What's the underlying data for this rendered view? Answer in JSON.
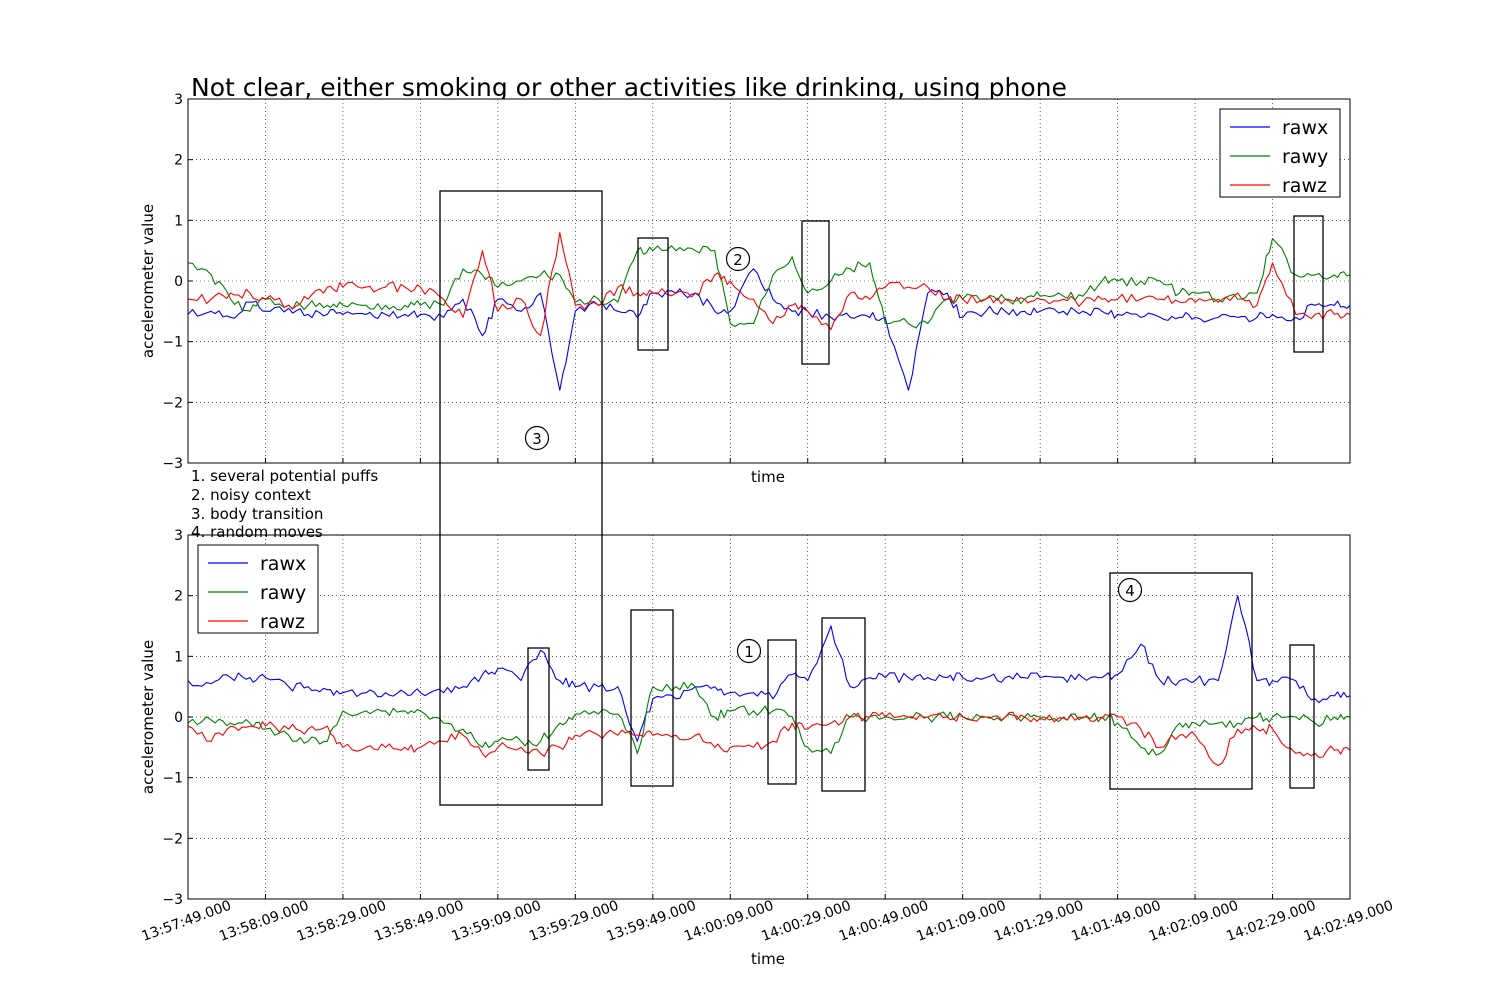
{
  "chart_data": [
    {
      "type": "line",
      "title": "Not clear, either smoking or other activities like drinking, using phone",
      "xlabel": "time",
      "ylabel": "accelerometer value",
      "ylim": [
        -3,
        3
      ],
      "yticks": [
        "3",
        "2",
        "1",
        "0",
        "−1",
        "−2",
        "−3"
      ],
      "grid": true,
      "legend": {
        "position": "top-right"
      },
      "series": [
        {
          "name": "rawx",
          "color": "#0000ff",
          "x": [
            "13:57:49",
            "13:57:55",
            "13:58:00",
            "13:58:05",
            "13:58:09",
            "13:58:15",
            "13:58:20",
            "13:58:25",
            "13:58:29",
            "13:58:35",
            "13:58:40",
            "13:58:45",
            "13:58:49",
            "13:58:55",
            "13:59:00",
            "13:59:05",
            "13:59:09",
            "13:59:15",
            "13:59:20",
            "13:59:25",
            "13:59:29",
            "13:59:35",
            "13:59:40",
            "13:59:45",
            "13:59:49",
            "13:59:55",
            "14:00:00",
            "14:00:05",
            "14:00:09",
            "14:00:15",
            "14:00:20",
            "14:00:25",
            "14:00:29",
            "14:00:35",
            "14:00:40",
            "14:00:45",
            "14:00:49",
            "14:00:55",
            "14:01:00",
            "14:01:05",
            "14:01:09",
            "14:01:15",
            "14:01:20",
            "14:01:25",
            "14:01:29",
            "14:01:35",
            "14:01:40",
            "14:01:45",
            "14:01:49",
            "14:01:55",
            "14:02:00",
            "14:02:05",
            "14:02:09",
            "14:02:15",
            "14:02:20",
            "14:02:25",
            "14:02:29",
            "14:02:35",
            "14:02:40",
            "14:02:45",
            "14:02:49"
          ],
          "y": [
            -0.55,
            -0.5,
            -0.6,
            -0.35,
            -0.5,
            -0.45,
            -0.55,
            -0.55,
            -0.55,
            -0.55,
            -0.55,
            -0.55,
            -0.55,
            -0.6,
            -0.3,
            -0.9,
            -0.3,
            -0.5,
            -0.2,
            -1.8,
            -0.5,
            -0.4,
            -0.5,
            -0.6,
            -0.2,
            -0.2,
            -0.2,
            -0.5,
            -0.5,
            0.2,
            -0.3,
            -0.5,
            -0.5,
            -0.6,
            -0.6,
            -0.6,
            -0.6,
            -1.8,
            -0.2,
            -0.2,
            -0.6,
            -0.5,
            -0.5,
            -0.5,
            -0.5,
            -0.5,
            -0.5,
            -0.5,
            -0.55,
            -0.6,
            -0.6,
            -0.6,
            -0.6,
            -0.6,
            -0.6,
            -0.6,
            -0.55,
            -0.6,
            -0.4,
            -0.4,
            -0.4
          ]
        },
        {
          "name": "rawy",
          "color": "#008000",
          "x": [
            "13:57:49",
            "13:57:55",
            "13:58:00",
            "13:58:05",
            "13:58:09",
            "13:58:15",
            "13:58:20",
            "13:58:25",
            "13:58:29",
            "13:58:35",
            "13:58:40",
            "13:58:45",
            "13:58:49",
            "13:58:55",
            "13:59:00",
            "13:59:05",
            "13:59:09",
            "13:59:15",
            "13:59:20",
            "13:59:25",
            "13:59:29",
            "13:59:35",
            "13:59:40",
            "13:59:45",
            "13:59:49",
            "13:59:55",
            "14:00:00",
            "14:00:05",
            "14:00:09",
            "14:00:15",
            "14:00:20",
            "14:00:25",
            "14:00:29",
            "14:00:35",
            "14:00:40",
            "14:00:45",
            "14:00:49",
            "14:00:55",
            "14:01:00",
            "14:01:05",
            "14:01:09",
            "14:01:15",
            "14:01:20",
            "14:01:25",
            "14:01:29",
            "14:01:35",
            "14:01:40",
            "14:01:45",
            "14:01:49",
            "14:01:55",
            "14:02:00",
            "14:02:05",
            "14:02:09",
            "14:02:15",
            "14:02:20",
            "14:02:25",
            "14:02:29",
            "14:02:35",
            "14:02:40",
            "14:02:45",
            "14:02:49"
          ],
          "y": [
            0.3,
            0.1,
            -0.3,
            -0.5,
            -0.3,
            -0.4,
            -0.4,
            -0.4,
            -0.4,
            -0.4,
            -0.4,
            -0.4,
            -0.4,
            -0.4,
            0.2,
            0.1,
            -0.1,
            0.0,
            0.1,
            0.1,
            -0.35,
            -0.3,
            -0.35,
            0.5,
            0.5,
            0.5,
            0.5,
            0.5,
            -0.7,
            -0.7,
            0.1,
            0.4,
            -0.2,
            0.0,
            0.2,
            0.3,
            -0.7,
            -0.7,
            -0.7,
            -0.3,
            -0.3,
            -0.3,
            -0.3,
            -0.3,
            -0.25,
            -0.25,
            -0.25,
            0.0,
            0.0,
            0.0,
            0.0,
            -0.2,
            -0.2,
            -0.3,
            -0.3,
            -0.2,
            0.7,
            0.1,
            0.1,
            0.1,
            0.1
          ]
        },
        {
          "name": "rawz",
          "color": "#ff0000",
          "x": [
            "13:57:49",
            "13:57:55",
            "13:58:00",
            "13:58:05",
            "13:58:09",
            "13:58:15",
            "13:58:20",
            "13:58:25",
            "13:58:29",
            "13:58:35",
            "13:58:40",
            "13:58:45",
            "13:58:49",
            "13:58:55",
            "13:59:00",
            "13:59:05",
            "13:59:09",
            "13:59:15",
            "13:59:20",
            "13:59:25",
            "13:59:29",
            "13:59:35",
            "13:59:40",
            "13:59:45",
            "13:59:49",
            "13:59:55",
            "14:00:00",
            "14:00:05",
            "14:00:09",
            "14:00:15",
            "14:00:20",
            "14:00:25",
            "14:00:29",
            "14:00:35",
            "14:00:40",
            "14:00:45",
            "14:00:49",
            "14:00:55",
            "14:01:00",
            "14:01:05",
            "14:01:09",
            "14:01:15",
            "14:01:20",
            "14:01:25",
            "14:01:29",
            "14:01:35",
            "14:01:40",
            "14:01:45",
            "14:01:49",
            "14:01:55",
            "14:02:00",
            "14:02:05",
            "14:02:09",
            "14:02:15",
            "14:02:20",
            "14:02:25",
            "14:02:29",
            "14:02:35",
            "14:02:40",
            "14:02:45",
            "14:02:49"
          ],
          "y": [
            -0.3,
            -0.3,
            -0.2,
            -0.2,
            -0.3,
            -0.4,
            -0.3,
            -0.1,
            -0.1,
            -0.1,
            -0.1,
            -0.1,
            -0.1,
            -0.3,
            -0.6,
            0.5,
            -0.5,
            -0.3,
            -0.9,
            0.8,
            -0.4,
            -0.4,
            -0.1,
            -0.2,
            -0.2,
            -0.2,
            -0.2,
            0.1,
            0.0,
            -0.3,
            -0.7,
            -0.4,
            -0.5,
            -0.8,
            -0.2,
            -0.3,
            -0.1,
            -0.1,
            -0.1,
            -0.3,
            -0.3,
            -0.3,
            -0.3,
            -0.3,
            -0.3,
            -0.3,
            -0.35,
            -0.3,
            -0.3,
            -0.3,
            -0.3,
            -0.35,
            -0.35,
            -0.35,
            -0.2,
            -0.4,
            0.3,
            -0.55,
            -0.55,
            -0.55,
            -0.55
          ]
        }
      ]
    },
    {
      "type": "line",
      "title": "",
      "xlabel": "time",
      "ylabel": "accelerometer value",
      "ylim": [
        -3,
        3
      ],
      "yticks": [
        "3",
        "2",
        "1",
        "0",
        "−1",
        "−2",
        "−3"
      ],
      "xticks": [
        "13:57:49.000",
        "13:58:09.000",
        "13:58:29.000",
        "13:58:49.000",
        "13:59:09.000",
        "13:59:29.000",
        "13:59:49.000",
        "14:00:09.000",
        "14:00:29.000",
        "14:00:49.000",
        "14:01:09.000",
        "14:01:29.000",
        "14:01:49.000",
        "14:02:09.000",
        "14:02:29.000",
        "14:02:49.000"
      ],
      "grid": true,
      "legend": {
        "position": "top-left"
      },
      "series": [
        {
          "name": "rawx",
          "color": "#0000ff",
          "x": [
            "13:57:49",
            "13:57:55",
            "13:58:00",
            "13:58:05",
            "13:58:09",
            "13:58:15",
            "13:58:20",
            "13:58:25",
            "13:58:29",
            "13:58:35",
            "13:58:40",
            "13:58:45",
            "13:58:49",
            "13:58:55",
            "13:59:00",
            "13:59:05",
            "13:59:09",
            "13:59:15",
            "13:59:20",
            "13:59:25",
            "13:59:29",
            "13:59:35",
            "13:59:40",
            "13:59:45",
            "13:59:49",
            "13:59:55",
            "14:00:00",
            "14:00:05",
            "14:00:09",
            "14:00:15",
            "14:00:20",
            "14:00:25",
            "14:00:29",
            "14:00:35",
            "14:00:40",
            "14:00:45",
            "14:00:49",
            "14:00:55",
            "14:01:00",
            "14:01:05",
            "14:01:09",
            "14:01:15",
            "14:01:20",
            "14:01:25",
            "14:01:29",
            "14:01:35",
            "14:01:40",
            "14:01:45",
            "14:01:49",
            "14:01:55",
            "14:02:00",
            "14:02:05",
            "14:02:09",
            "14:02:15",
            "14:02:20",
            "14:02:25",
            "14:02:29",
            "14:02:35",
            "14:02:40",
            "14:02:45",
            "14:02:49"
          ],
          "y": [
            0.6,
            0.55,
            0.65,
            0.65,
            0.65,
            0.5,
            0.5,
            0.45,
            0.4,
            0.4,
            0.4,
            0.4,
            0.4,
            0.4,
            0.5,
            0.7,
            0.8,
            0.6,
            1.1,
            0.6,
            0.5,
            0.5,
            0.5,
            -0.4,
            0.3,
            0.3,
            0.5,
            0.5,
            0.4,
            0.4,
            0.3,
            0.7,
            0.6,
            1.5,
            0.5,
            0.65,
            0.65,
            0.65,
            0.65,
            0.65,
            0.65,
            0.65,
            0.65,
            0.65,
            0.65,
            0.65,
            0.65,
            0.65,
            0.7,
            1.2,
            0.6,
            0.6,
            0.6,
            0.6,
            2.0,
            0.6,
            0.6,
            0.6,
            0.3,
            0.35,
            0.35
          ]
        },
        {
          "name": "rawy",
          "color": "#008000",
          "x": [
            "13:57:49",
            "13:57:55",
            "13:58:00",
            "13:58:05",
            "13:58:09",
            "13:58:15",
            "13:58:20",
            "13:58:25",
            "13:58:29",
            "13:58:35",
            "13:58:40",
            "13:58:45",
            "13:58:49",
            "13:58:55",
            "13:59:00",
            "13:59:05",
            "13:59:09",
            "13:59:15",
            "13:59:20",
            "13:59:25",
            "13:59:29",
            "13:59:35",
            "13:59:40",
            "13:59:45",
            "13:59:49",
            "13:59:55",
            "14:00:00",
            "14:00:05",
            "14:00:09",
            "14:00:15",
            "14:00:20",
            "14:00:25",
            "14:00:29",
            "14:00:35",
            "14:00:40",
            "14:00:45",
            "14:00:49",
            "14:00:55",
            "14:01:00",
            "14:01:05",
            "14:01:09",
            "14:01:15",
            "14:01:20",
            "14:01:25",
            "14:01:29",
            "14:01:35",
            "14:01:40",
            "14:01:45",
            "14:01:49",
            "14:01:55",
            "14:02:00",
            "14:02:05",
            "14:02:09",
            "14:02:15",
            "14:02:20",
            "14:02:25",
            "14:02:29",
            "14:02:35",
            "14:02:40",
            "14:02:45",
            "14:02:49"
          ],
          "y": [
            -0.1,
            -0.05,
            -0.1,
            -0.1,
            -0.2,
            -0.3,
            -0.4,
            -0.4,
            0.1,
            0.1,
            0.1,
            0.1,
            0.1,
            -0.1,
            -0.2,
            -0.5,
            -0.4,
            -0.4,
            -0.4,
            -0.1,
            0.05,
            0.05,
            0.05,
            -0.6,
            0.5,
            0.5,
            0.5,
            0.0,
            0.1,
            0.1,
            0.1,
            0.0,
            -0.5,
            -0.6,
            0.0,
            0.0,
            0.0,
            0.0,
            0.0,
            0.0,
            0.0,
            0.0,
            0.0,
            0.0,
            0.0,
            0.0,
            0.0,
            0.0,
            -0.1,
            -0.5,
            -0.6,
            -0.1,
            -0.1,
            -0.1,
            -0.1,
            0.0,
            0.0,
            0.0,
            -0.1,
            0.0,
            0.0
          ]
        },
        {
          "name": "rawz",
          "color": "#ff0000",
          "x": [
            "13:57:49",
            "13:57:55",
            "13:58:00",
            "13:58:05",
            "13:58:09",
            "13:58:15",
            "13:58:20",
            "13:58:25",
            "13:58:29",
            "13:58:35",
            "13:58:40",
            "13:58:45",
            "13:58:49",
            "13:58:55",
            "13:59:00",
            "13:59:05",
            "13:59:09",
            "13:59:15",
            "13:59:20",
            "13:59:25",
            "13:59:29",
            "13:59:35",
            "13:59:40",
            "13:59:45",
            "13:59:49",
            "13:59:55",
            "14:00:00",
            "14:00:05",
            "14:00:09",
            "14:00:15",
            "14:00:20",
            "14:00:25",
            "14:00:29",
            "14:00:35",
            "14:00:40",
            "14:00:45",
            "14:00:49",
            "14:00:55",
            "14:01:00",
            "14:01:05",
            "14:01:09",
            "14:01:15",
            "14:01:20",
            "14:01:25",
            "14:01:29",
            "14:01:35",
            "14:01:40",
            "14:01:45",
            "14:01:49",
            "14:01:55",
            "14:02:00",
            "14:02:05",
            "14:02:09",
            "14:02:15",
            "14:02:20",
            "14:02:25",
            "14:02:29",
            "14:02:35",
            "14:02:40",
            "14:02:45",
            "14:02:49"
          ],
          "y": [
            -0.15,
            -0.4,
            -0.15,
            -0.15,
            -0.15,
            -0.2,
            -0.2,
            -0.15,
            -0.5,
            -0.5,
            -0.5,
            -0.5,
            -0.5,
            -0.4,
            -0.3,
            -0.6,
            -0.5,
            -0.5,
            -0.6,
            -0.5,
            -0.3,
            -0.3,
            -0.3,
            -0.3,
            -0.3,
            -0.3,
            -0.3,
            -0.5,
            -0.5,
            -0.5,
            -0.4,
            -0.1,
            -0.2,
            -0.1,
            0.0,
            0.0,
            0.0,
            0.0,
            0.0,
            0.0,
            0.0,
            0.0,
            0.0,
            0.0,
            -0.02,
            -0.02,
            -0.02,
            -0.02,
            0.0,
            -0.2,
            -0.5,
            -0.3,
            -0.3,
            -0.8,
            -0.2,
            -0.2,
            -0.2,
            -0.6,
            -0.6,
            -0.55,
            -0.55
          ]
        }
      ]
    }
  ],
  "annotations": {
    "notes": [
      "1. several potential puffs",
      "2. noisy context",
      "3. body transition",
      "4. random moves"
    ],
    "markers": [
      "1",
      "2",
      "3",
      "4"
    ]
  }
}
